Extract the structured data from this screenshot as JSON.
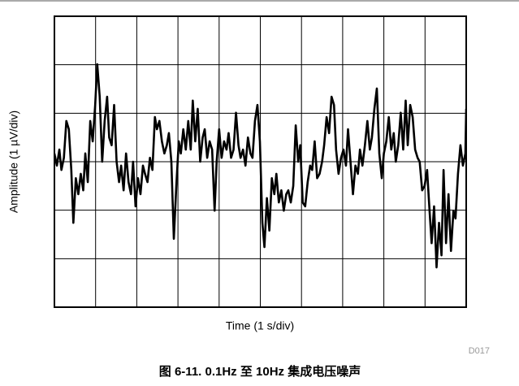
{
  "chart_data": {
    "type": "line",
    "title": "图 6-11. 0.1Hz 至 10Hz 集成电压噪声",
    "x_label": "Time (1 s/div)",
    "y_label": "Amplitude (1 µV/div)",
    "annotation": "D017",
    "color": "#000000",
    "grid": true,
    "xlim": [
      0,
      10
    ],
    "xticks": [
      0,
      1,
      2,
      3,
      4,
      5,
      6,
      7,
      8,
      9,
      10
    ],
    "ylim": [
      -3,
      3
    ],
    "yticks": [
      -3,
      -2,
      -1,
      0,
      1,
      2,
      3
    ],
    "x": [
      0,
      0.06,
      0.12,
      0.17,
      0.23,
      0.29,
      0.35,
      0.41,
      0.46,
      0.52,
      0.58,
      0.64,
      0.7,
      0.75,
      0.81,
      0.87,
      0.93,
      0.99,
      1.04,
      1.1,
      1.16,
      1.22,
      1.28,
      1.33,
      1.39,
      1.45,
      1.51,
      1.57,
      1.62,
      1.68,
      1.74,
      1.8,
      1.86,
      1.91,
      1.97,
      2.03,
      2.09,
      2.15,
      2.2,
      2.26,
      2.32,
      2.38,
      2.44,
      2.49,
      2.55,
      2.61,
      2.67,
      2.73,
      2.78,
      2.84,
      2.9,
      2.96,
      3.02,
      3.07,
      3.13,
      3.19,
      3.25,
      3.31,
      3.36,
      3.42,
      3.48,
      3.54,
      3.6,
      3.65,
      3.71,
      3.77,
      3.83,
      3.89,
      3.94,
      4.0,
      4.06,
      4.12,
      4.18,
      4.23,
      4.29,
      4.35,
      4.41,
      4.47,
      4.52,
      4.58,
      4.64,
      4.7,
      4.76,
      4.81,
      4.87,
      4.93,
      4.99,
      5.05,
      5.1,
      5.16,
      5.22,
      5.28,
      5.34,
      5.39,
      5.45,
      5.51,
      5.57,
      5.63,
      5.68,
      5.74,
      5.8,
      5.86,
      5.92,
      5.97,
      6.03,
      6.09,
      6.15,
      6.21,
      6.26,
      6.32,
      6.38,
      6.44,
      6.5,
      6.55,
      6.61,
      6.67,
      6.73,
      6.79,
      6.84,
      6.9,
      6.96,
      7.02,
      7.08,
      7.13,
      7.19,
      7.25,
      7.31,
      7.37,
      7.42,
      7.48,
      7.54,
      7.6,
      7.66,
      7.71,
      7.77,
      7.83,
      7.89,
      7.95,
      8.0,
      8.06,
      8.12,
      8.18,
      8.24,
      8.29,
      8.35,
      8.41,
      8.47,
      8.53,
      8.58,
      8.64,
      8.7,
      8.76,
      8.82,
      8.87,
      8.93,
      8.99,
      9.05,
      9.11,
      9.16,
      9.22,
      9.28,
      9.34,
      9.4,
      9.45,
      9.51,
      9.57,
      9.63,
      9.69,
      9.74,
      9.8,
      9.86,
      9.92,
      9.98,
      10
    ],
    "values": [
      0.17,
      -0.08,
      0.25,
      -0.17,
      0.08,
      0.84,
      0.67,
      -0.17,
      -1.26,
      -0.34,
      -0.67,
      -0.25,
      -0.59,
      0.17,
      -0.42,
      0.84,
      0.42,
      1.17,
      2.01,
      1.34,
      0,
      0.84,
      1.34,
      0.5,
      0.34,
      1.17,
      0,
      -0.42,
      -0.08,
      -0.59,
      0.17,
      -0.42,
      -0.67,
      0,
      -0.92,
      -0.34,
      -0.67,
      -0.08,
      -0.25,
      -0.42,
      0.08,
      -0.17,
      0.92,
      0.67,
      0.84,
      0.42,
      0.17,
      0.34,
      0.59,
      0,
      -1.59,
      -0.5,
      0.42,
      0.17,
      0.67,
      0.25,
      0.84,
      0.25,
      1.26,
      0.42,
      1.09,
      0,
      0.5,
      0.67,
      0.08,
      0.42,
      0.25,
      -1.01,
      0,
      0.67,
      0.08,
      0.42,
      0.25,
      0.59,
      0.08,
      0.25,
      1.01,
      0.34,
      0.08,
      0.25,
      -0.08,
      0.5,
      0.17,
      0.08,
      0.84,
      1.17,
      0.42,
      -1.26,
      -1.76,
      -0.75,
      -1.42,
      -0.34,
      -0.67,
      -0.25,
      -0.84,
      -0.59,
      -1.01,
      -0.67,
      -0.59,
      -0.84,
      -0.5,
      0.75,
      0,
      0.34,
      -0.84,
      -0.92,
      -0.42,
      -0.08,
      -0.17,
      0.42,
      -0.34,
      -0.25,
      0,
      0.34,
      0.92,
      0.59,
      1.34,
      1.17,
      0.25,
      -0.25,
      0.08,
      0.25,
      -0.08,
      0.67,
      0,
      -0.67,
      -0.08,
      -0.25,
      0.25,
      -0.08,
      0.34,
      0.84,
      0.25,
      0.5,
      1.09,
      1.51,
      0.17,
      -0.34,
      0.17,
      0.42,
      0.92,
      0.25,
      0.59,
      0,
      0.34,
      1.01,
      0.25,
      1.26,
      0.34,
      1.17,
      0.92,
      0.25,
      0.08,
      0,
      -0.59,
      -0.5,
      -0.17,
      -1.01,
      -1.68,
      -0.92,
      -2.18,
      -1.26,
      -1.93,
      -0.17,
      -1.68,
      -0.67,
      -1.84,
      -1.01,
      -1.17,
      -0.25,
      0.34,
      -0.08,
      0.17,
      1.09
    ]
  }
}
